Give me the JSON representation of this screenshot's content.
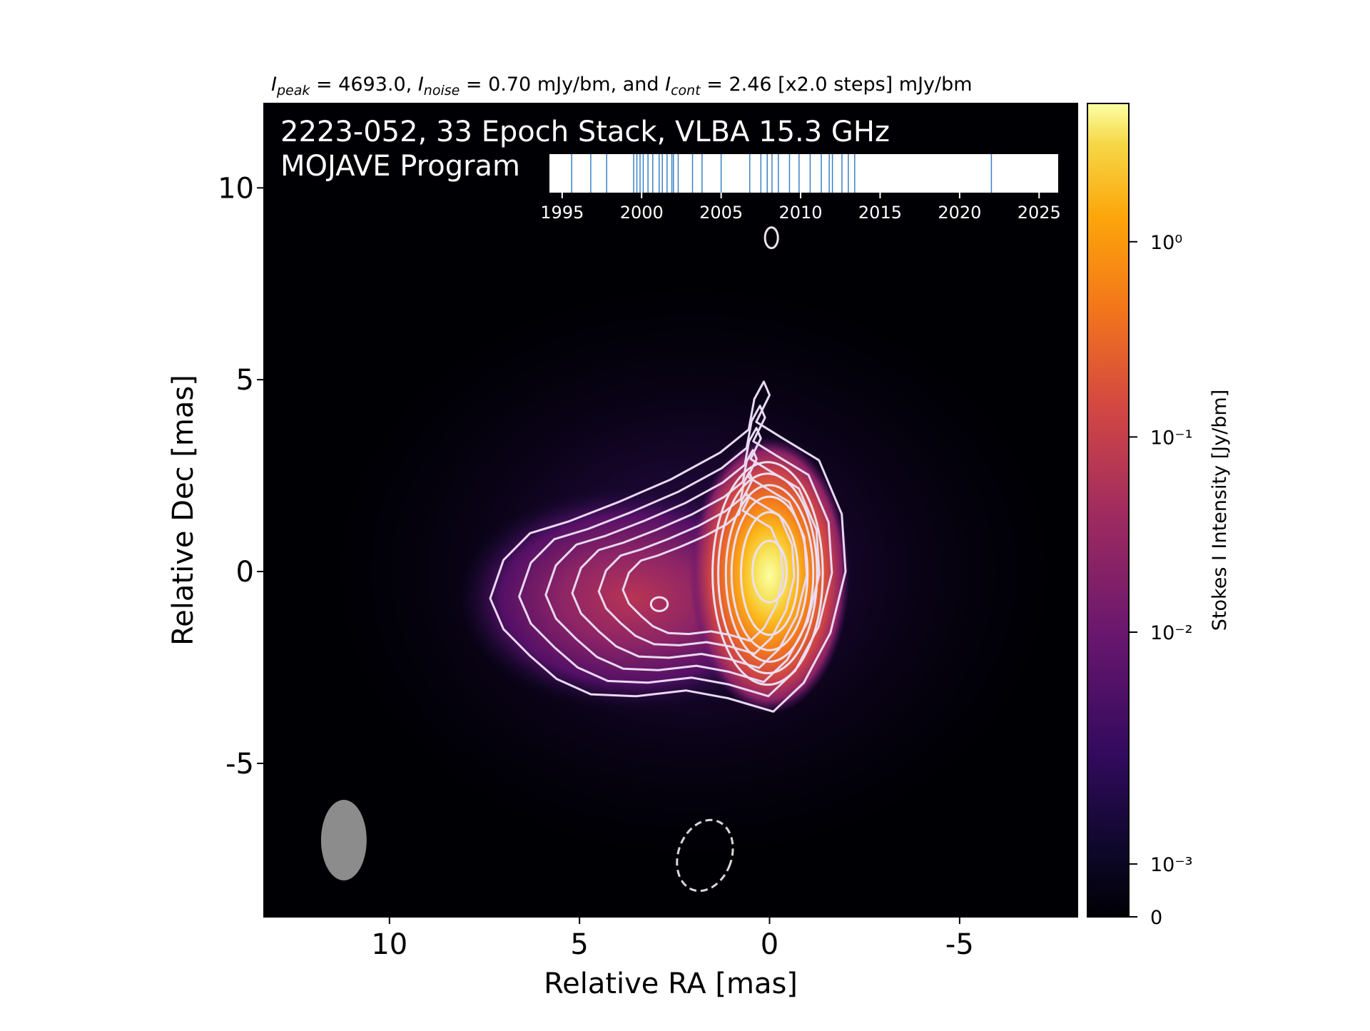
{
  "chart_data": {
    "type": "heatmap",
    "header": {
      "peak_symbol": "I",
      "peak_sub": "peak",
      "peak_value": " = 4693.0, ",
      "noise_symbol": "I",
      "noise_sub": "noise",
      "noise_value": " = 0.70 mJy/bm, and ",
      "cont_symbol": "I",
      "cont_sub": "cont",
      "cont_value": " = 2.46 [x2.0 steps] mJy/bm"
    },
    "panel_title_line1": "2223-052, 33 Epoch Stack, VLBA 15.3 GHz",
    "panel_title_line2": "MOJAVE Program",
    "xlabel": "Relative RA [mas]",
    "ylabel": "Relative Dec [mas]",
    "xlim": [
      13.3,
      -8.1
    ],
    "ylim": [
      -9.0,
      12.2
    ],
    "x_ticks": [
      {
        "value": 10,
        "label": "10"
      },
      {
        "value": 5,
        "label": "5"
      },
      {
        "value": 0,
        "label": "0"
      },
      {
        "value": -5,
        "label": "-5"
      }
    ],
    "y_ticks": [
      {
        "value": 10,
        "label": "10"
      },
      {
        "value": 5,
        "label": "5"
      },
      {
        "value": 0,
        "label": "0"
      },
      {
        "value": -5,
        "label": "-5"
      }
    ],
    "colorbar": {
      "label": "Stokes I Intensity [Jy/bm]",
      "colormap": "inferno",
      "scale": "log",
      "ticks": [
        {
          "label": "10⁰",
          "frac": 0.83
        },
        {
          "label": "10⁻¹",
          "frac": 0.59
        },
        {
          "label": "10⁻²",
          "frac": 0.35
        },
        {
          "label": "10⁻³",
          "frac": 0.065
        },
        {
          "label": "0",
          "frac": 0.0
        }
      ]
    },
    "epoch_timeline": {
      "xlim": [
        1994.2,
        2026.2
      ],
      "tick_labels": [
        "1995",
        "2000",
        "2005",
        "2010",
        "2015",
        "2020",
        "2025"
      ],
      "tick_values": [
        1995,
        2000,
        2005,
        2010,
        2015,
        2020,
        2025
      ],
      "epochs": [
        1995.6,
        1996.8,
        1997.8,
        1999.5,
        1999.7,
        1999.9,
        2000.1,
        2000.4,
        2000.7,
        2001.1,
        2001.3,
        2001.6,
        2002.0,
        2002.3,
        2003.2,
        2005.0,
        2006.8,
        2007.5,
        2007.9,
        2008.6,
        2009.3,
        2009.9,
        2010.6,
        2011.3,
        2012.0,
        2012.6,
        2013.0,
        2013.4,
        2022.0,
        2003.8,
        2008.2,
        2011.8,
        2001.9
      ]
    },
    "contours": [
      {
        "cx": 0.0,
        "cy": 0.0,
        "rx": 0.45,
        "ry": 0.8
      },
      {
        "cx": 0.0,
        "cy": -0.05,
        "rx": 0.75,
        "ry": 1.6
      },
      {
        "cx": 0.0,
        "cy": -0.05,
        "rx": 1.0,
        "ry": 2.0
      },
      {
        "cx": 0.0,
        "cy": -0.05,
        "rx": 1.15,
        "ry": 2.3
      },
      {
        "cx": 0.05,
        "cy": -0.05,
        "rx": 1.3,
        "ry": 2.6
      },
      {
        "cx": 0.05,
        "cy": -0.05,
        "rx": 1.45,
        "ry": 2.9
      },
      {
        "cx": 2.9,
        "cy": -0.85,
        "rx": 0.22,
        "ry": 0.18
      },
      {
        "cx": -0.05,
        "cy": 8.7,
        "rx": 0.17,
        "ry": 0.27
      }
    ],
    "negative_contour": {
      "cx": 1.7,
      "cy": -7.4,
      "rx": 0.7,
      "ry": 0.95
    },
    "beam": {
      "cx": 11.2,
      "cy": -7.0,
      "rx": 0.6,
      "ry": 1.05
    }
  }
}
